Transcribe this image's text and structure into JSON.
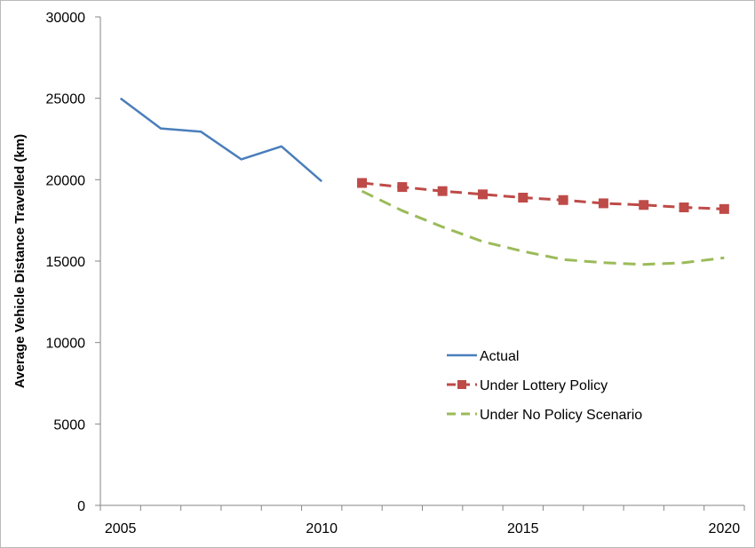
{
  "chart_data": {
    "type": "line",
    "title": "",
    "xlabel": "",
    "ylabel": "Average Vehicle Distance Travelled (km)",
    "ylim": [
      0,
      30000
    ],
    "yticks": [
      0,
      5000,
      10000,
      15000,
      20000,
      25000,
      30000
    ],
    "xlim": [
      2004.5,
      2020.5
    ],
    "xtick_labels": [
      "2005",
      "2010",
      "2015",
      "2020"
    ],
    "grid": false,
    "legend_position": "center-right",
    "series": [
      {
        "name": "Actual",
        "color": "#4a7ebb",
        "style": "solid",
        "marker": "none",
        "x": [
          2005,
          2006,
          2007,
          2008,
          2009,
          2010
        ],
        "y": [
          25000,
          23150,
          22950,
          21250,
          22050,
          19900
        ]
      },
      {
        "name": "Under Lottery Policy",
        "color": "#be4b48",
        "style": "dashed",
        "marker": "square",
        "x": [
          2011,
          2012,
          2013,
          2014,
          2015,
          2016,
          2017,
          2018,
          2019,
          2020
        ],
        "y": [
          19800,
          19550,
          19300,
          19100,
          18900,
          18750,
          18550,
          18450,
          18300,
          18200
        ]
      },
      {
        "name": "Under No Policy Scenario",
        "color": "#9bbb59",
        "style": "dashed",
        "marker": "none",
        "x": [
          2011,
          2012,
          2013,
          2014,
          2015,
          2016,
          2017,
          2018,
          2019,
          2020
        ],
        "y": [
          19300,
          18100,
          17100,
          16200,
          15600,
          15100,
          14900,
          14800,
          14900,
          15200
        ]
      }
    ]
  }
}
